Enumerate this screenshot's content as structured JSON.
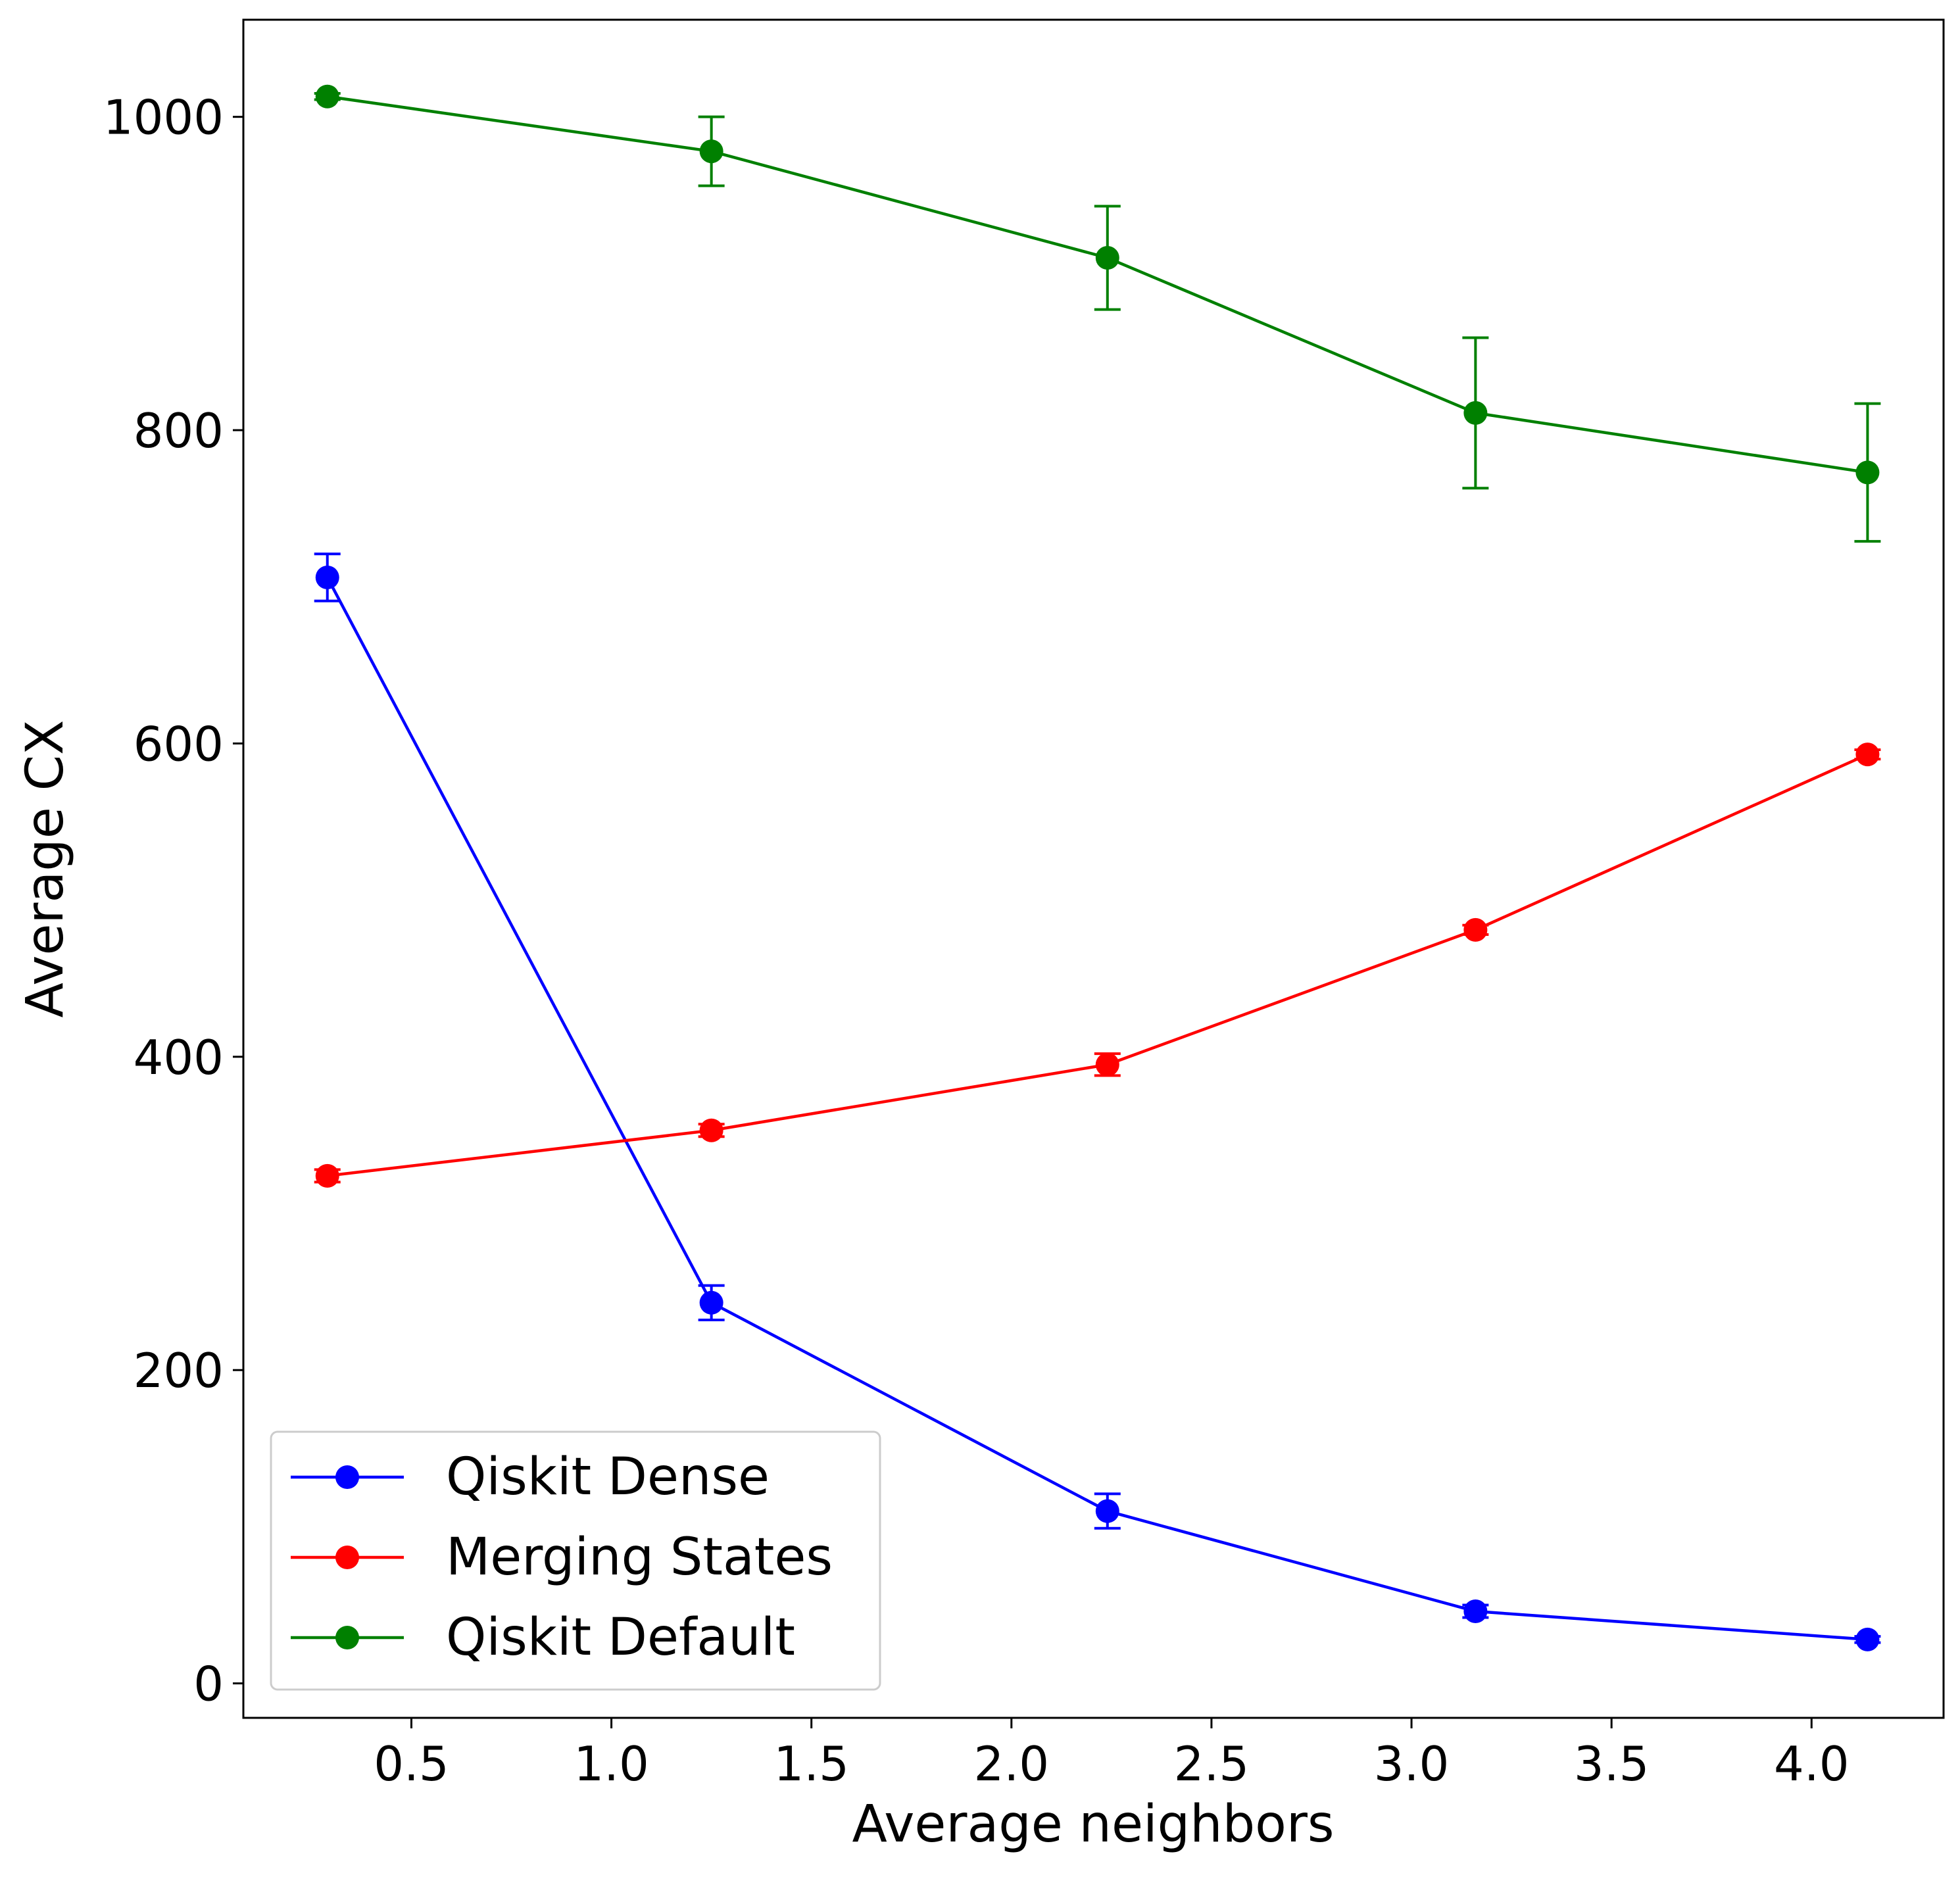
{
  "chart_data": {
    "type": "line",
    "title": "",
    "xlabel": "Average neighbors",
    "ylabel": "Average CX",
    "xlim": [
      0.08,
      4.33
    ],
    "ylim": [
      -22,
      1062
    ],
    "xticks": [
      0.5,
      1.0,
      1.5,
      2.0,
      2.5,
      3.0,
      3.5,
      4.0
    ],
    "xtick_labels": [
      "0.5",
      "1.0",
      "1.5",
      "2.0",
      "2.5",
      "3.0",
      "3.5",
      "4.0"
    ],
    "yticks": [
      0,
      200,
      400,
      600,
      800,
      1000
    ],
    "ytick_labels": [
      "0",
      "200",
      "400",
      "600",
      "800",
      "1000"
    ],
    "grid": false,
    "legend_position": "lower-left",
    "x": [
      0.29,
      1.25,
      2.24,
      3.16,
      4.14
    ],
    "series": [
      {
        "name": "Qiskit Dense",
        "color": "#0000ff",
        "marker": "circle",
        "values": [
          706,
          243,
          110,
          46,
          28
        ],
        "errors": [
          15,
          11,
          11,
          4,
          2
        ]
      },
      {
        "name": "Merging States",
        "color": "#ff0000",
        "marker": "circle",
        "values": [
          324,
          353,
          395,
          481,
          593
        ],
        "errors": [
          4,
          4,
          7,
          3,
          3
        ]
      },
      {
        "name": "Qiskit Default",
        "color": "#008000",
        "marker": "circle",
        "values": [
          1013,
          978,
          910,
          811,
          773
        ],
        "errors": [
          2,
          22,
          33,
          48,
          44
        ]
      }
    ]
  }
}
